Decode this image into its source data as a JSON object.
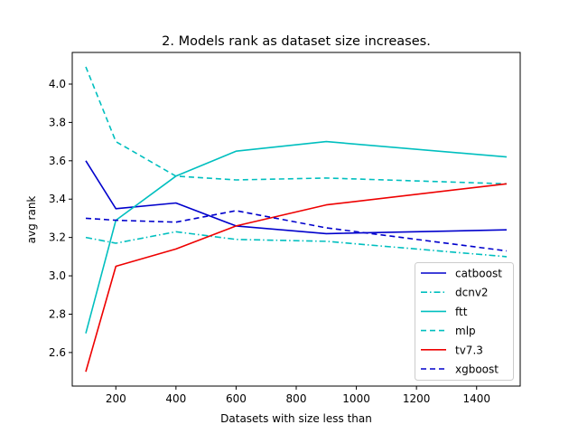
{
  "chart_data": {
    "type": "line",
    "title": "2. Models rank as dataset size increases.",
    "xlabel": "Datasets with size less than",
    "ylabel": "avg rank",
    "xlim": [
      55,
      1545
    ],
    "ylim": [
      2.425,
      4.165
    ],
    "xticks": [
      200,
      400,
      600,
      800,
      1000,
      1200,
      1400
    ],
    "yticks": [
      2.6,
      2.8,
      3.0,
      3.2,
      3.4,
      3.6,
      3.8,
      4.0
    ],
    "grid": false,
    "legend_position": "lower-right",
    "x": [
      100,
      200,
      400,
      600,
      900,
      1500
    ],
    "series": [
      {
        "name": "catboost",
        "color": "#0000cc",
        "dash": "solid",
        "values": [
          3.6,
          3.35,
          3.38,
          3.26,
          3.22,
          3.24
        ]
      },
      {
        "name": "dcnv2",
        "color": "#00bfbf",
        "dash": "dashdot",
        "values": [
          3.2,
          3.17,
          3.23,
          3.19,
          3.18,
          3.1
        ]
      },
      {
        "name": "ftt",
        "color": "#00bfbf",
        "dash": "solid",
        "values": [
          2.7,
          3.29,
          3.52,
          3.65,
          3.7,
          3.62
        ]
      },
      {
        "name": "mlp",
        "color": "#00bfbf",
        "dash": "dashed",
        "values": [
          4.09,
          3.7,
          3.52,
          3.5,
          3.51,
          3.48
        ]
      },
      {
        "name": "tv7.3",
        "color": "#ee0000",
        "dash": "solid",
        "values": [
          2.5,
          3.05,
          3.14,
          3.26,
          3.37,
          3.48
        ]
      },
      {
        "name": "xgboost",
        "color": "#0000cc",
        "dash": "dashed",
        "values": [
          3.3,
          3.29,
          3.28,
          3.34,
          3.25,
          3.13
        ]
      }
    ]
  }
}
